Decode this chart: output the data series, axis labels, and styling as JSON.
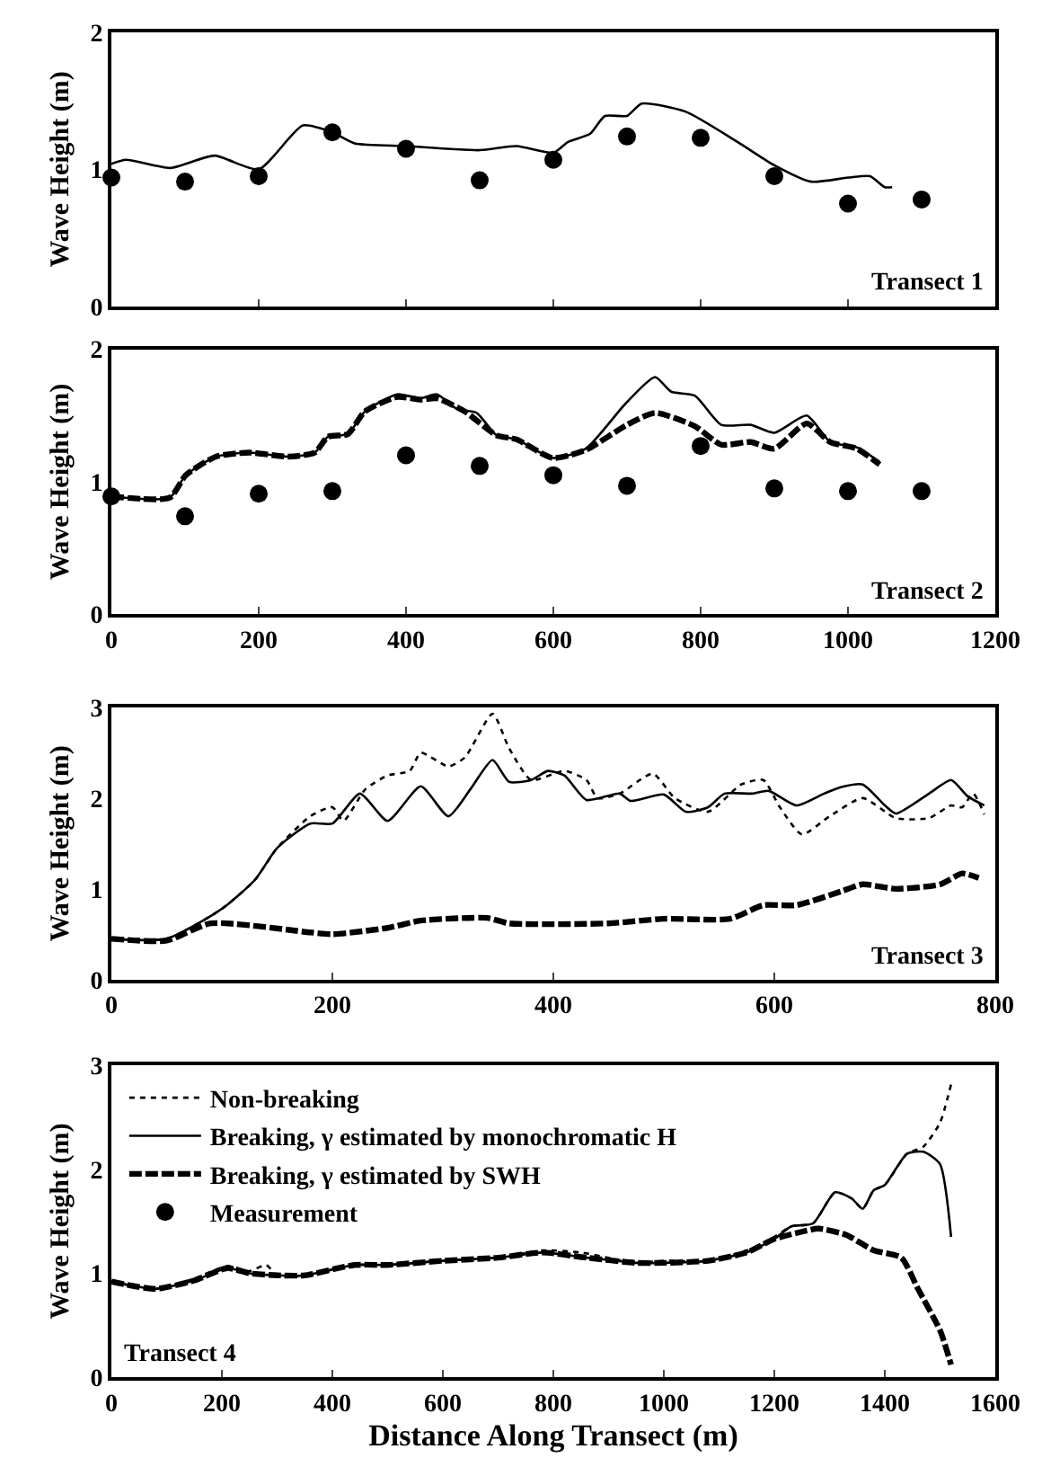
{
  "chart_data": [
    {
      "type": "line",
      "ylabel": "Wave Height (m)",
      "xlim": [
        0,
        1200
      ],
      "xticks": [
        0,
        200,
        400,
        600,
        800,
        1000,
        1200
      ],
      "ylim": [
        0,
        2
      ],
      "yticks": [
        0,
        1,
        2
      ],
      "tick_labels": "y",
      "grid": false,
      "annotations": [
        "Transect 1"
      ],
      "series": [
        {
          "type": "line",
          "color": "#000000",
          "line_style": "solid",
          "x": [
            0,
            20,
            80,
            140,
            200,
            260,
            300,
            330,
            400,
            500,
            550,
            600,
            620,
            650,
            670,
            700,
            720,
            780,
            850,
            900,
            950,
            1000,
            1030,
            1050,
            1060
          ],
          "values": [
            1.04,
            1.07,
            1.01,
            1.1,
            1.0,
            1.32,
            1.27,
            1.19,
            1.17,
            1.14,
            1.17,
            1.12,
            1.2,
            1.26,
            1.39,
            1.39,
            1.48,
            1.42,
            1.2,
            1.03,
            0.91,
            0.94,
            0.95,
            0.87,
            0.87
          ]
        },
        {
          "type": "scatter",
          "name": "Measurement",
          "color": "#000000",
          "marker": "circle",
          "x": [
            0,
            100,
            200,
            300,
            400,
            500,
            600,
            700,
            800,
            900,
            1000,
            1100
          ],
          "values": [
            0.94,
            0.91,
            0.95,
            1.27,
            1.15,
            0.92,
            1.07,
            1.24,
            1.23,
            0.95,
            0.75,
            0.78
          ]
        }
      ]
    },
    {
      "type": "line",
      "ylabel": "Wave Height (m)",
      "xlim": [
        0,
        1200
      ],
      "xticks": [
        0,
        200,
        400,
        600,
        800,
        1000,
        1200
      ],
      "ylim": [
        0,
        2
      ],
      "yticks": [
        0,
        1,
        2
      ],
      "grid": false,
      "annotations": [
        "Transect 2"
      ],
      "series": [
        {
          "type": "line",
          "color": "#000000",
          "line_style": "solid",
          "x": [
            0,
            79,
            101,
            142,
            187,
            240,
            276,
            294,
            321,
            344,
            388,
            420,
            442,
            469,
            496,
            523,
            550,
            599,
            644,
            698,
            738,
            760,
            792,
            828,
            868,
            900,
            944,
            976,
            1012,
            1043
          ],
          "values": [
            0.89,
            0.88,
            1.05,
            1.19,
            1.22,
            1.19,
            1.22,
            1.34,
            1.36,
            1.53,
            1.66,
            1.63,
            1.66,
            1.55,
            1.52,
            1.35,
            1.32,
            1.18,
            1.25,
            1.59,
            1.79,
            1.68,
            1.65,
            1.43,
            1.43,
            1.37,
            1.5,
            1.3,
            1.26,
            1.15
          ]
        },
        {
          "type": "line",
          "color": "#000000",
          "line_style": "dashed",
          "x": [
            0,
            79,
            101,
            142,
            187,
            240,
            276,
            294,
            321,
            344,
            388,
            420,
            442,
            480,
            523,
            550,
            599,
            644,
            700,
            738,
            792,
            828,
            868,
            900,
            944,
            976,
            1012,
            1043
          ],
          "values": [
            0.89,
            0.88,
            1.05,
            1.19,
            1.22,
            1.19,
            1.22,
            1.34,
            1.36,
            1.53,
            1.64,
            1.62,
            1.63,
            1.53,
            1.35,
            1.32,
            1.18,
            1.24,
            1.43,
            1.52,
            1.42,
            1.28,
            1.3,
            1.25,
            1.44,
            1.3,
            1.25,
            1.13
          ]
        },
        {
          "type": "scatter",
          "color": "#000000",
          "marker": "circle",
          "x": [
            0,
            100,
            200,
            300,
            400,
            500,
            600,
            700,
            800,
            900,
            1000,
            1100
          ],
          "values": [
            0.89,
            0.74,
            0.91,
            0.93,
            1.2,
            1.12,
            1.05,
            0.97,
            1.27,
            0.95,
            0.93,
            0.93
          ]
        }
      ]
    },
    {
      "type": "line",
      "ylabel": "Wave Height (m)",
      "xlim": [
        0,
        800
      ],
      "xticks": [
        0,
        200,
        400,
        600,
        800
      ],
      "ylim": [
        0,
        3
      ],
      "yticks": [
        0,
        1,
        2,
        3
      ],
      "grid": false,
      "annotations": [
        "Transect 3"
      ],
      "series": [
        {
          "type": "line",
          "color": "#000000",
          "line_style": "dotted",
          "x": [
            0,
            50,
            100,
            130,
            150,
            180,
            200,
            210,
            230,
            250,
            270,
            280,
            305,
            320,
            345,
            360,
            380,
            410,
            430,
            440,
            460,
            490,
            510,
            540,
            570,
            590,
            605,
            625,
            650,
            680,
            710,
            740,
            760,
            770,
            780,
            790
          ],
          "values": [
            0.45,
            0.45,
            0.78,
            1.1,
            1.45,
            1.8,
            1.9,
            1.75,
            2.1,
            2.25,
            2.3,
            2.5,
            2.35,
            2.45,
            2.93,
            2.55,
            2.2,
            2.3,
            2.2,
            2.0,
            2.05,
            2.27,
            2.0,
            1.85,
            2.15,
            2.2,
            1.9,
            1.6,
            1.8,
            2.0,
            1.78,
            1.78,
            1.92,
            1.9,
            2.05,
            1.82
          ]
        },
        {
          "type": "line",
          "color": "#000000",
          "line_style": "solid",
          "x": [
            0,
            50,
            100,
            130,
            150,
            180,
            200,
            225,
            250,
            280,
            305,
            325,
            345,
            360,
            380,
            395,
            410,
            430,
            460,
            470,
            500,
            520,
            540,
            555,
            580,
            595,
            620,
            645,
            660,
            680,
            700,
            710,
            740,
            760,
            775,
            790
          ],
          "values": [
            0.45,
            0.45,
            0.78,
            1.1,
            1.45,
            1.72,
            1.72,
            2.05,
            1.75,
            2.13,
            1.8,
            2.1,
            2.42,
            2.18,
            2.2,
            2.3,
            2.25,
            1.98,
            2.05,
            1.97,
            2.04,
            1.85,
            1.9,
            2.05,
            2.05,
            2.08,
            1.92,
            2.05,
            2.12,
            2.15,
            1.92,
            1.83,
            2.05,
            2.2,
            2.02,
            1.92
          ]
        },
        {
          "type": "line",
          "color": "#000000",
          "line_style": "dashed",
          "x": [
            0,
            50,
            90,
            180,
            200,
            250,
            280,
            340,
            360,
            450,
            500,
            560,
            590,
            620,
            660,
            680,
            710,
            750,
            770,
            785
          ],
          "values": [
            0.45,
            0.43,
            0.62,
            0.52,
            0.5,
            0.57,
            0.65,
            0.68,
            0.62,
            0.62,
            0.67,
            0.67,
            0.82,
            0.82,
            0.97,
            1.05,
            1.0,
            1.05,
            1.17,
            1.12
          ]
        }
      ]
    },
    {
      "type": "line",
      "ylabel": "Wave Height (m)",
      "xlabel": "Distance Along Transect (m)",
      "xlim": [
        0,
        1600
      ],
      "xticks": [
        0,
        200,
        400,
        600,
        800,
        1000,
        1200,
        1400,
        1600
      ],
      "ylim": [
        0,
        3
      ],
      "yticks": [
        0,
        1,
        2,
        3
      ],
      "grid": false,
      "legend": "top left",
      "annotations": [
        "Transect 4"
      ],
      "series": [
        {
          "type": "line",
          "name": "Non-breaking",
          "color": "#000000",
          "line_style": "dotted",
          "x": [
            0,
            80,
            150,
            210,
            250,
            280,
            300,
            350,
            440,
            500,
            600,
            700,
            780,
            850,
            950,
            1000,
            1080,
            1150,
            1200,
            1230,
            1270,
            1310,
            1340,
            1360,
            1380,
            1400,
            1440,
            1470,
            1500,
            1520
          ],
          "values": [
            0.92,
            0.85,
            0.95,
            1.07,
            1.02,
            1.08,
            0.98,
            0.98,
            1.08,
            1.08,
            1.12,
            1.15,
            1.22,
            1.2,
            1.1,
            1.12,
            1.12,
            1.22,
            1.35,
            1.45,
            1.48,
            1.78,
            1.72,
            1.62,
            1.8,
            1.85,
            2.15,
            2.22,
            2.45,
            2.82
          ]
        },
        {
          "type": "line",
          "name": "Breaking, γ estimated by monochromatic H",
          "color": "#000000",
          "line_style": "solid",
          "x": [
            0,
            80,
            150,
            210,
            250,
            300,
            350,
            440,
            500,
            600,
            700,
            780,
            860,
            950,
            1000,
            1080,
            1150,
            1200,
            1230,
            1270,
            1310,
            1340,
            1360,
            1380,
            1400,
            1440,
            1470,
            1500,
            1520
          ],
          "values": [
            0.92,
            0.85,
            0.93,
            1.05,
            1.0,
            0.98,
            0.98,
            1.08,
            1.08,
            1.12,
            1.15,
            1.2,
            1.15,
            1.1,
            1.1,
            1.12,
            1.2,
            1.33,
            1.45,
            1.48,
            1.78,
            1.72,
            1.62,
            1.8,
            1.85,
            2.15,
            2.17,
            2.05,
            1.35
          ]
        },
        {
          "type": "line",
          "name": "Breaking, γ estimated by SWH",
          "color": "#000000",
          "line_style": "dashed",
          "x": [
            0,
            80,
            150,
            210,
            250,
            300,
            350,
            440,
            500,
            600,
            700,
            780,
            860,
            950,
            1000,
            1080,
            1150,
            1200,
            1250,
            1280,
            1330,
            1380,
            1430,
            1460,
            1500,
            1520
          ],
          "values": [
            0.92,
            0.85,
            0.93,
            1.05,
            1.0,
            0.98,
            0.98,
            1.08,
            1.08,
            1.12,
            1.15,
            1.2,
            1.15,
            1.1,
            1.1,
            1.12,
            1.2,
            1.33,
            1.4,
            1.43,
            1.37,
            1.22,
            1.15,
            0.85,
            0.45,
            0.12
          ]
        }
      ]
    }
  ]
}
